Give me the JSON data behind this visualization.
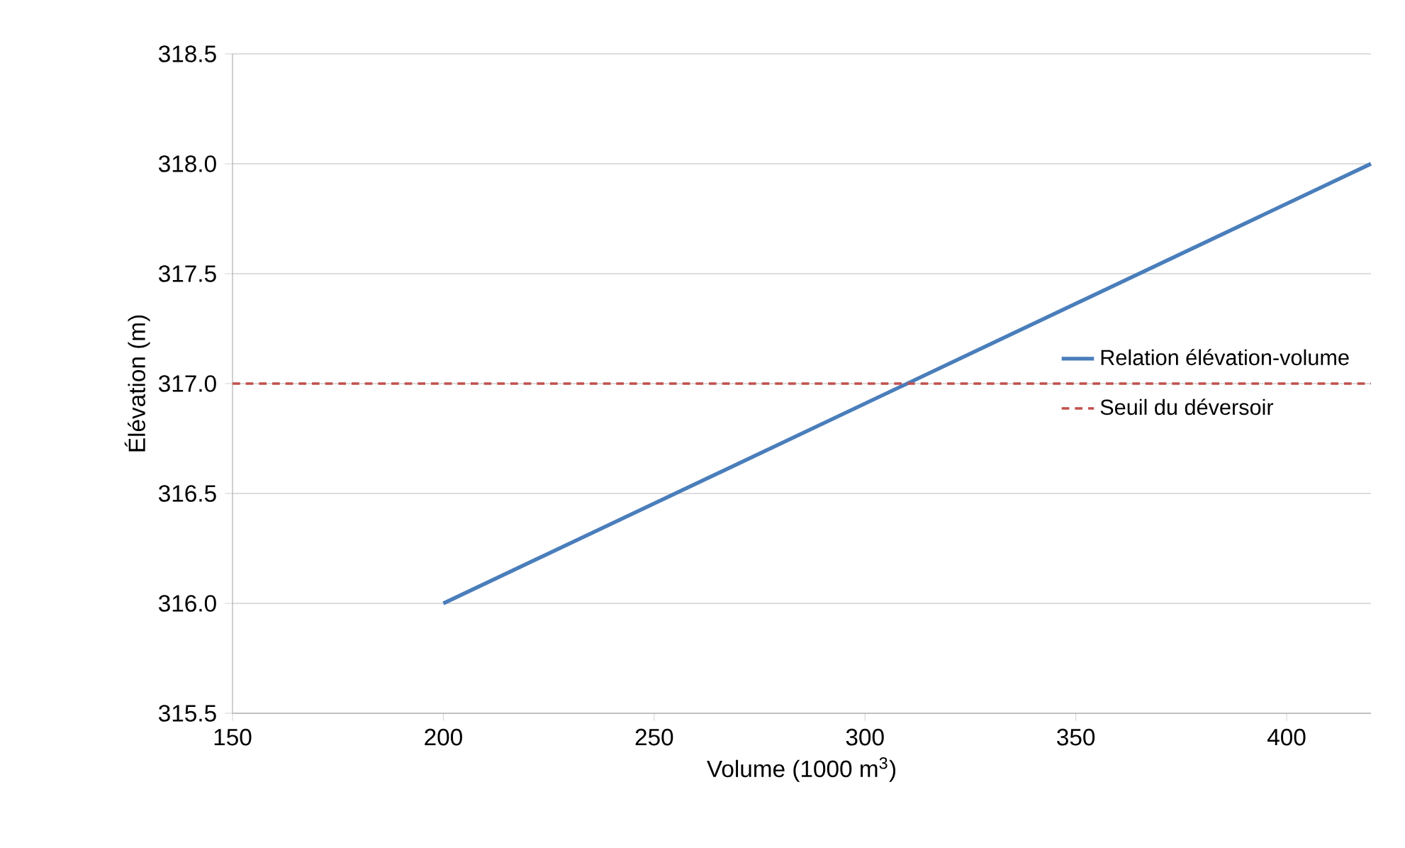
{
  "chart_data": {
    "type": "line",
    "xlabel": "Volume (1000 m$^{3}$)",
    "ylabel": "Élévation (m)",
    "xlim": [
      150,
      420
    ],
    "xticks": [
      150,
      200,
      250,
      300,
      350,
      400
    ],
    "ylim": [
      315.5,
      318.5
    ],
    "yticks": [
      {
        "value": 315.5,
        "label": "315.5"
      },
      {
        "value": 316,
        "label": "316.0"
      },
      {
        "value": 316.5,
        "label": "316.5"
      },
      {
        "value": 317,
        "label": "317.0"
      },
      {
        "value": 317.5,
        "label": "317.5"
      },
      {
        "value": 318,
        "label": "318.0"
      },
      {
        "value": 318.5,
        "label": "318.5"
      }
    ],
    "grid": "y",
    "legend": "right",
    "marker": "none",
    "line_style": "solid",
    "series": [
      {
        "name": "Relation élévation-volume",
        "color": "#4a7ebb",
        "x": [
          200,
          420
        ],
        "values": [
          316,
          318
        ]
      }
    ],
    "ref_lines": [
      {
        "axis": "y",
        "value": 317,
        "label": "Seuil du déversoir",
        "color": "#c0504d",
        "line_style": "dashed"
      }
    ]
  }
}
